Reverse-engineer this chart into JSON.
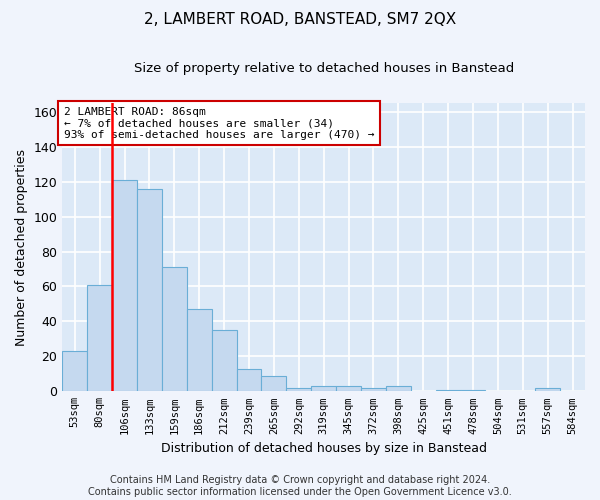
{
  "title": "2, LAMBERT ROAD, BANSTEAD, SM7 2QX",
  "subtitle": "Size of property relative to detached houses in Banstead",
  "xlabel": "Distribution of detached houses by size in Banstead",
  "ylabel": "Number of detached properties",
  "bar_color": "#c5d9ef",
  "bar_edge_color": "#6aaed6",
  "background_color": "#dce9f7",
  "grid_color": "#ffffff",
  "fig_bg_color": "#f0f4fc",
  "categories": [
    "53sqm",
    "80sqm",
    "106sqm",
    "133sqm",
    "159sqm",
    "186sqm",
    "212sqm",
    "239sqm",
    "265sqm",
    "292sqm",
    "319sqm",
    "345sqm",
    "372sqm",
    "398sqm",
    "425sqm",
    "451sqm",
    "478sqm",
    "504sqm",
    "531sqm",
    "557sqm",
    "584sqm"
  ],
  "values": [
    23,
    61,
    121,
    116,
    71,
    47,
    35,
    13,
    9,
    2,
    3,
    3,
    2,
    3,
    0,
    1,
    1,
    0,
    0,
    2,
    0
  ],
  "ylim": [
    0,
    165
  ],
  "yticks": [
    0,
    20,
    40,
    60,
    80,
    100,
    120,
    140,
    160
  ],
  "vline_x": 1.5,
  "annotation_text": "2 LAMBERT ROAD: 86sqm\n← 7% of detached houses are smaller (34)\n93% of semi-detached houses are larger (470) →",
  "annotation_box_facecolor": "#ffffff",
  "annotation_box_edgecolor": "#cc0000",
  "footer_line1": "Contains HM Land Registry data © Crown copyright and database right 2024.",
  "footer_line2": "Contains public sector information licensed under the Open Government Licence v3.0."
}
